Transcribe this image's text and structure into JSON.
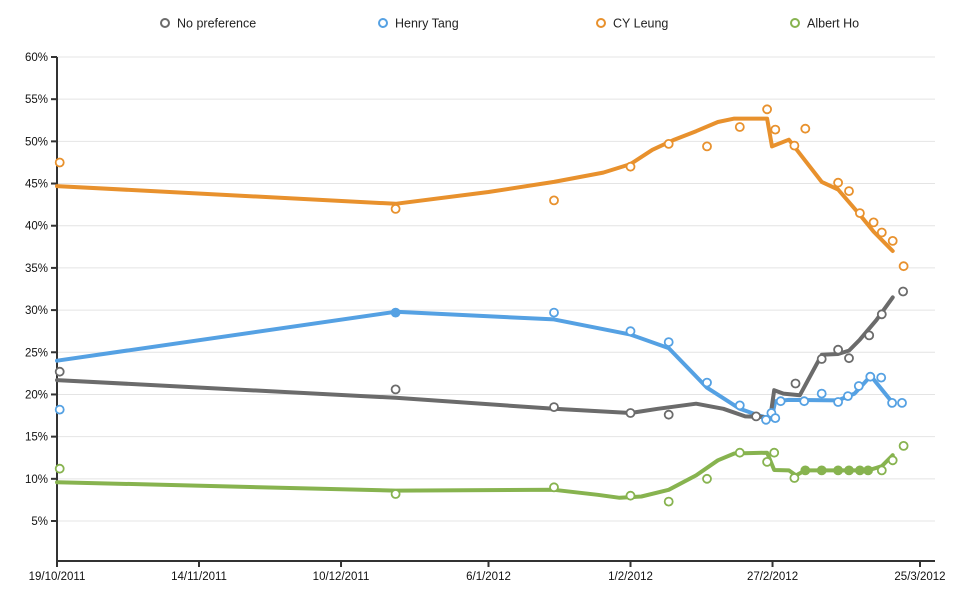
{
  "legend": {
    "items": [
      {
        "label": "No preference",
        "color": "#6B6B6B"
      },
      {
        "label": "Henry Tang",
        "color": "#55A1E3"
      },
      {
        "label": "CY Leung",
        "color": "#E8912D"
      },
      {
        "label": "Albert Ho",
        "color": "#87B34F"
      }
    ]
  },
  "x_axis": {
    "tick_labels": [
      "19/10/2011",
      "14/11/2011",
      "10/12/2011",
      "6/1/2012",
      "1/2/2012",
      "27/2/2012",
      "25/3/2012"
    ],
    "tick_days": [
      0,
      26,
      52,
      79,
      105,
      131,
      158
    ]
  },
  "y_axis": {
    "tick_labels": [
      "5%",
      "10%",
      "15%",
      "20%",
      "25%",
      "30%",
      "35%",
      "40%",
      "45%",
      "50%",
      "55%",
      "60%"
    ],
    "min": 5,
    "max": 60,
    "step": 5
  },
  "chart_data": {
    "type": "line",
    "x_unit": "days since 19/10/2011",
    "note": "thick lines = smoothed trend; circles = individual poll results (percent)",
    "ylim": [
      5,
      60
    ],
    "series": [
      {
        "name": "CY Leung",
        "color": "#E8912D",
        "line": [
          [
            0,
            44.7
          ],
          [
            62,
            42.6
          ],
          [
            79,
            44.0
          ],
          [
            91,
            45.2
          ],
          [
            100,
            46.3
          ],
          [
            105,
            47.3
          ],
          [
            109,
            49.0
          ],
          [
            113,
            50.2
          ],
          [
            117,
            51.2
          ],
          [
            121,
            52.3
          ],
          [
            124,
            52.7
          ],
          [
            130,
            52.7
          ],
          [
            130.9,
            49.4
          ],
          [
            134,
            50.2
          ],
          [
            140,
            45.2
          ],
          [
            143,
            44.3
          ],
          [
            147,
            41.3
          ],
          [
            149.5,
            39.3
          ],
          [
            153,
            37.0
          ]
        ],
        "points": [
          [
            0.5,
            47.5
          ],
          [
            62,
            42.0
          ],
          [
            91,
            43.0
          ],
          [
            105,
            47.0
          ],
          [
            112,
            49.7
          ],
          [
            119,
            49.4
          ],
          [
            125,
            51.7
          ],
          [
            130,
            53.8
          ],
          [
            131.5,
            51.4
          ],
          [
            135,
            49.5
          ],
          [
            137,
            51.5
          ],
          [
            143,
            45.1
          ],
          [
            145,
            44.1
          ],
          [
            147,
            41.5
          ],
          [
            149.5,
            40.4
          ],
          [
            151,
            39.2
          ],
          [
            153,
            38.2
          ],
          [
            155,
            35.2
          ]
        ]
      },
      {
        "name": "Albert Ho",
        "color": "#87B34F",
        "line": [
          [
            0,
            9.6
          ],
          [
            62,
            8.6
          ],
          [
            91,
            8.7
          ],
          [
            99,
            8.1
          ],
          [
            103,
            7.75
          ],
          [
            107,
            7.9
          ],
          [
            112,
            8.7
          ],
          [
            117,
            10.4
          ],
          [
            121,
            12.2
          ],
          [
            124,
            13.0
          ],
          [
            130,
            13.1
          ],
          [
            131.3,
            11.05
          ],
          [
            134,
            11.0
          ],
          [
            135.3,
            10.4
          ],
          [
            137,
            11.0
          ],
          [
            148.5,
            11.0
          ],
          [
            151,
            11.5
          ],
          [
            153,
            12.8
          ]
        ],
        "points": [
          [
            0.5,
            11.2
          ],
          [
            62,
            8.2
          ],
          [
            91,
            9.0
          ],
          [
            105,
            8.0
          ],
          [
            112,
            7.3
          ],
          [
            119,
            10.0
          ],
          [
            125,
            13.1
          ],
          [
            130,
            12.0
          ],
          [
            131.3,
            13.1
          ],
          [
            135,
            10.1
          ],
          [
            137,
            11.0,
            1
          ],
          [
            140,
            11.0,
            1
          ],
          [
            143,
            11.0,
            1
          ],
          [
            145,
            11.0,
            1
          ],
          [
            147,
            11.0,
            1
          ],
          [
            148.5,
            11.0,
            1
          ],
          [
            151,
            11.0
          ],
          [
            153,
            12.2
          ],
          [
            155,
            13.9
          ]
        ]
      },
      {
        "name": "Henry Tang",
        "color": "#55A1E3",
        "line": [
          [
            0,
            24.0
          ],
          [
            62,
            29.8
          ],
          [
            91,
            28.9
          ],
          [
            105,
            27.1
          ],
          [
            112,
            25.5
          ],
          [
            119,
            20.8
          ],
          [
            125,
            18.3
          ],
          [
            128.5,
            17.5
          ],
          [
            130.8,
            17.1
          ],
          [
            131.5,
            19.2
          ],
          [
            134,
            19.35
          ],
          [
            143,
            19.3
          ],
          [
            146,
            20.1
          ],
          [
            149,
            22.2
          ],
          [
            153,
            19.0
          ]
        ],
        "points": [
          [
            0.5,
            18.2
          ],
          [
            62,
            29.7,
            1
          ],
          [
            91,
            29.7
          ],
          [
            105,
            27.5
          ],
          [
            112,
            26.2
          ],
          [
            119,
            21.4
          ],
          [
            125,
            18.7
          ],
          [
            129.8,
            17.0
          ],
          [
            130.8,
            17.8
          ],
          [
            131.5,
            17.2
          ],
          [
            132.5,
            19.2
          ],
          [
            136.8,
            19.2
          ],
          [
            140,
            20.1
          ],
          [
            143,
            19.1
          ],
          [
            144.8,
            19.8
          ],
          [
            146.8,
            21.0
          ],
          [
            148.9,
            22.1
          ],
          [
            150.9,
            22.0
          ],
          [
            152.9,
            19.0
          ],
          [
            154.7,
            19.0
          ]
        ]
      },
      {
        "name": "No preference",
        "color": "#6B6B6B",
        "line": [
          [
            0,
            21.7
          ],
          [
            62,
            19.6
          ],
          [
            91,
            18.3
          ],
          [
            105,
            17.8
          ],
          [
            110,
            18.3
          ],
          [
            117,
            18.9
          ],
          [
            122,
            18.3
          ],
          [
            126,
            17.4
          ],
          [
            130.6,
            17.3
          ],
          [
            131.3,
            20.5
          ],
          [
            133,
            20.1
          ],
          [
            136,
            19.9
          ],
          [
            140,
            24.7
          ],
          [
            143,
            24.8
          ],
          [
            145,
            25.2
          ],
          [
            147,
            26.5
          ],
          [
            150,
            28.8
          ],
          [
            153,
            31.5
          ]
        ],
        "points": [
          [
            0.5,
            22.7
          ],
          [
            62,
            20.6
          ],
          [
            91,
            18.5
          ],
          [
            105,
            17.8
          ],
          [
            112,
            17.6
          ],
          [
            128,
            17.4
          ],
          [
            135.2,
            21.3
          ],
          [
            140,
            24.2
          ],
          [
            143,
            25.3
          ],
          [
            145,
            24.3
          ],
          [
            148.7,
            27.0
          ],
          [
            151,
            29.5
          ],
          [
            154.9,
            32.2
          ]
        ]
      }
    ]
  }
}
